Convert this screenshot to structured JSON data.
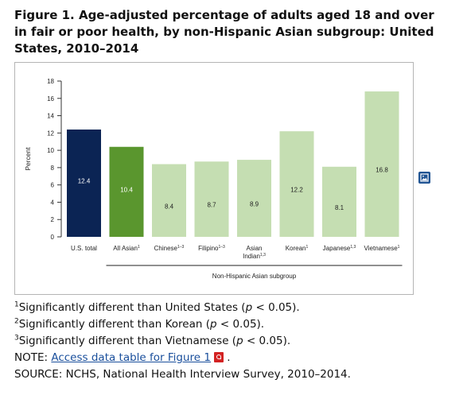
{
  "title": "Figure 1. Age-adjusted percentage of adults aged 18 and over in fair or poor health, by non-Hispanic Asian subgroup: United States, 2010–2014",
  "colors": {
    "us_total": "#0b2454",
    "all_asian": "#5a962e",
    "subgroup": "#c5deb2",
    "axis": "#333333"
  },
  "chart_data": {
    "type": "bar",
    "ylabel": "Percent",
    "ylim": [
      0,
      18
    ],
    "yticks": [
      0,
      2,
      4,
      6,
      8,
      10,
      12,
      14,
      16,
      18
    ],
    "group_label": "Non-Hispanic Asian subgroup",
    "grid": false,
    "bars": [
      {
        "label": "U.S. total",
        "sup": "",
        "label2": "",
        "sup2": "",
        "value": 12.4,
        "value_label": "12.4",
        "color": "#0b2454"
      },
      {
        "label": "All Asian",
        "sup": "1",
        "label2": "",
        "sup2": "",
        "value": 10.4,
        "value_label": "10.4",
        "color": "#5a962e"
      },
      {
        "label": "Chinese",
        "sup": "1–3",
        "label2": "",
        "sup2": "",
        "value": 8.4,
        "value_label": "8.4",
        "color": "#c5deb2"
      },
      {
        "label": "Filipino",
        "sup": "1–3",
        "label2": "",
        "sup2": "",
        "value": 8.7,
        "value_label": "8.7",
        "color": "#c5deb2"
      },
      {
        "label": "Asian",
        "sup": "",
        "label2": "Indian",
        "sup2": "1,3",
        "value": 8.9,
        "value_label": "8.9",
        "color": "#c5deb2"
      },
      {
        "label": "Korean",
        "sup": "1",
        "label2": "",
        "sup2": "",
        "value": 12.2,
        "value_label": "12.2",
        "color": "#c5deb2"
      },
      {
        "label": "Japanese",
        "sup": "1,3",
        "label2": "",
        "sup2": "",
        "value": 8.1,
        "value_label": "8.1",
        "color": "#c5deb2"
      },
      {
        "label": "Vietnamese",
        "sup": "1",
        "label2": "",
        "sup2": "",
        "value": 16.8,
        "value_label": "16.8",
        "color": "#c5deb2"
      }
    ]
  },
  "notes": {
    "n1_sup": "1",
    "n1_a": "Significantly different than United States (",
    "n1_p": "p",
    "n1_b": " < 0.05).",
    "n2_sup": "2",
    "n2_a": "Significantly different than Korean (",
    "n2_p": "p",
    "n2_b": " < 0.05).",
    "n3_sup": "3",
    "n3_a": "Significantly different than Vietnamese (",
    "n3_p": "p",
    "n3_b": " < 0.05).",
    "note_prefix": "NOTE: ",
    "note_link": "Access data table for Figure 1",
    "note_suffix": ".",
    "source": "SOURCE: NCHS, National Health Interview Survey, 2010–2014."
  },
  "icons": {
    "expand": "image-expand-icon",
    "pdf": "pdf-icon"
  }
}
